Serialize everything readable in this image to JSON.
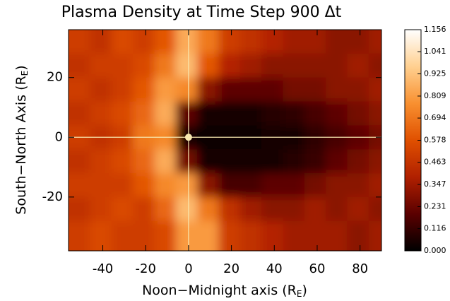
{
  "chart_data": {
    "type": "heatmap",
    "title": "Plasma Density at Time Step 900 Δt",
    "xlabel": [
      "Noon−Midnight axis (R",
      "E",
      ")"
    ],
    "ylabel": [
      "South−North Axis (R",
      "E",
      ")"
    ],
    "xlim": [
      -56,
      90
    ],
    "ylim": [
      -38,
      36
    ],
    "xticks": [
      -40,
      -20,
      0,
      20,
      40,
      60,
      80
    ],
    "yticks": [
      -20,
      0,
      20
    ],
    "x": [
      -51,
      -41,
      -31,
      -21,
      -11,
      -1,
      9,
      19,
      29,
      39,
      49,
      59,
      69,
      79,
      89
    ],
    "y": [
      32,
      24,
      16,
      8,
      0,
      -8,
      -16,
      -24,
      -32
    ],
    "z": [
      [
        0.5,
        0.45,
        0.55,
        0.5,
        0.6,
        0.85,
        0.7,
        0.5,
        0.45,
        0.4,
        0.35,
        0.35,
        0.3,
        0.3,
        0.35
      ],
      [
        0.45,
        0.5,
        0.5,
        0.55,
        0.7,
        0.9,
        0.6,
        0.4,
        0.35,
        0.3,
        0.3,
        0.3,
        0.3,
        0.35,
        0.3
      ],
      [
        0.5,
        0.45,
        0.5,
        0.6,
        0.8,
        0.75,
        0.3,
        0.2,
        0.2,
        0.2,
        0.25,
        0.25,
        0.3,
        0.3,
        0.35
      ],
      [
        0.45,
        0.5,
        0.55,
        0.65,
        0.85,
        0.2,
        0.05,
        0.05,
        0.05,
        0.08,
        0.1,
        0.15,
        0.2,
        0.25,
        0.3
      ],
      [
        0.5,
        0.45,
        0.5,
        0.7,
        0.75,
        0.05,
        0.03,
        0.03,
        0.03,
        0.05,
        0.05,
        0.1,
        0.15,
        0.2,
        0.25
      ],
      [
        0.45,
        0.5,
        0.55,
        0.65,
        0.85,
        0.25,
        0.05,
        0.05,
        0.05,
        0.05,
        0.08,
        0.12,
        0.2,
        0.25,
        0.3
      ],
      [
        0.5,
        0.5,
        0.5,
        0.6,
        0.75,
        0.8,
        0.3,
        0.15,
        0.15,
        0.2,
        0.2,
        0.25,
        0.3,
        0.3,
        0.35
      ],
      [
        0.45,
        0.5,
        0.55,
        0.5,
        0.65,
        0.9,
        0.7,
        0.45,
        0.35,
        0.3,
        0.3,
        0.35,
        0.3,
        0.35,
        0.3
      ],
      [
        0.5,
        0.55,
        0.5,
        0.5,
        0.55,
        0.8,
        0.8,
        0.5,
        0.45,
        0.4,
        0.35,
        0.35,
        0.35,
        0.3,
        0.35
      ]
    ],
    "zlim": [
      0,
      1.156
    ],
    "colormap": [
      "#000000",
      "#5a0000",
      "#b02000",
      "#e05000",
      "#f89030",
      "#ffd090",
      "#ffffff"
    ],
    "zticks": [
      {
        "value": 0,
        "label": "0.000"
      },
      {
        "value": 0.116,
        "label": "0.116"
      },
      {
        "value": 0.231,
        "label": "0.231"
      },
      {
        "value": 0.347,
        "label": "0.347"
      },
      {
        "value": 0.463,
        "label": "0.463"
      },
      {
        "value": 0.578,
        "label": "0.578"
      },
      {
        "value": 0.694,
        "label": "0.694"
      },
      {
        "value": 0.809,
        "label": "0.809"
      },
      {
        "value": 0.925,
        "label": "0.925"
      },
      {
        "value": 1.041,
        "label": "1.041"
      },
      {
        "value": 1.156,
        "label": "1.156"
      }
    ],
    "crosshair": {
      "x": 0,
      "y": 0,
      "color": "#f8e8b0"
    }
  }
}
